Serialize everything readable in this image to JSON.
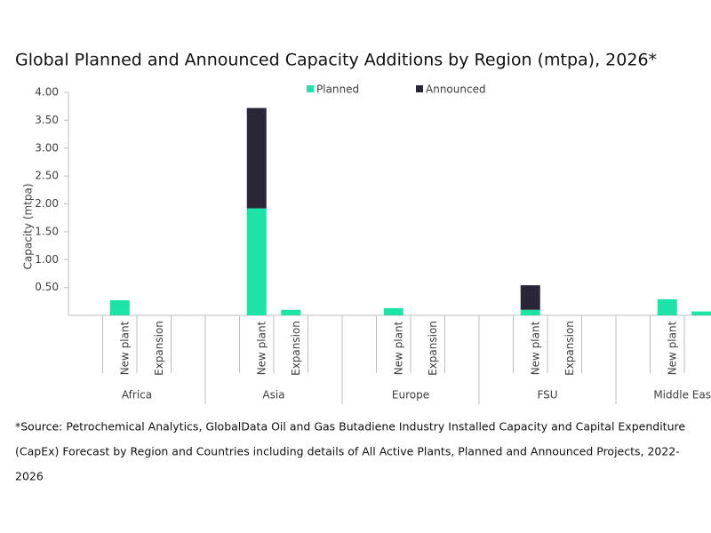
{
  "chart_data": {
    "type": "stacked_bar",
    "title": "Global Planned and Announced Capacity Additions by Region (mtpa), 2026*",
    "y_label": "Capacity (mtpa)",
    "groups": [
      "Africa",
      "Asia",
      "Europe",
      "FSU",
      "Middle East"
    ],
    "categories": [
      "New plant",
      "Expansion",
      "New plant",
      "Expansion",
      "New plant",
      "Expansion",
      "New plant",
      "Expansion",
      "New plant",
      null
    ],
    "series": [
      {
        "name": "Planned",
        "color": "#1de3a6",
        "values": [
          0.27,
          0,
          1.92,
          0.1,
          0.13,
          0,
          0.1,
          0,
          0.29,
          0.07
        ]
      },
      {
        "name": "Announced",
        "color": "#2a2637",
        "values": [
          0,
          0,
          1.8,
          0,
          0,
          0,
          0.44,
          0,
          0,
          0
        ]
      }
    ],
    "ylim": [
      0,
      4
    ],
    "yticks": [
      {
        "value": 0.5,
        "label": "0.50"
      },
      {
        "value": 1,
        "label": "1.00"
      },
      {
        "value": 1.5,
        "label": "1.50"
      },
      {
        "value": 2,
        "label": "2.00"
      },
      {
        "value": 2.5,
        "label": "2.50"
      },
      {
        "value": 3,
        "label": "3.00"
      },
      {
        "value": 3.5,
        "label": "3.50"
      },
      {
        "value": 4,
        "label": "4.00"
      }
    ],
    "legend": "top",
    "footnote": [
      "*Source: Petrochemical Analytics, GlobalData Oil and Gas Butadiene Industry Installed Capacity and Capital Expenditure",
      "(CapEx) Forecast by Region and Countries including details of All Active Plants, Planned and Announced Projects, 2022-",
      "2026"
    ]
  }
}
